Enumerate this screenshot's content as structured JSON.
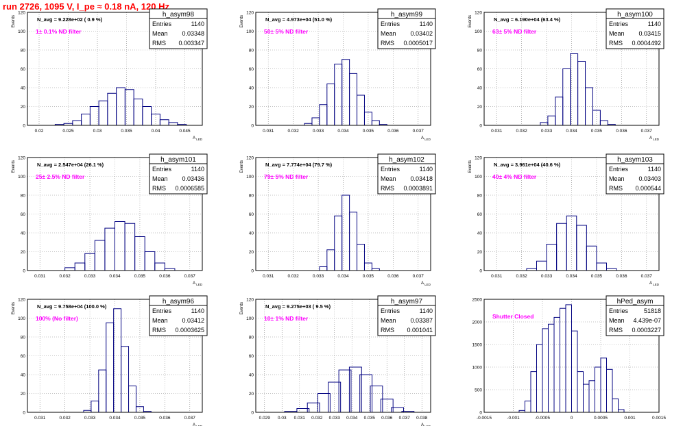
{
  "title": "run 2726,  1095 V, I_pe ≈ 0.18 nA, 120 Hz",
  "colors": {
    "hist": "#000080",
    "title": "#ff0000",
    "annotation": "#ff00ff",
    "frame": "#000000"
  },
  "chart_data": [
    {
      "type": "bar",
      "name": "h_asym98",
      "annotation": "N_avg = 9.228e+02 ( 0.9 %)",
      "label": "1± 0.1% ND filter",
      "ylabel": "Events",
      "xlabel": "A_LED",
      "stats": {
        "entries_label": "Entries",
        "entries": "1140",
        "mean_label": "Mean",
        "mean": "0.03348",
        "rms_label": "RMS",
        "rms": "0.003347"
      },
      "xlim": [
        0.018,
        0.048
      ],
      "ylim": [
        0,
        120
      ],
      "xticks": [
        "0.02",
        "0.025",
        "0.03",
        "0.035",
        "0.04",
        "0.045"
      ],
      "yticks": [
        "0",
        "20",
        "40",
        "60",
        "80",
        "100",
        "120"
      ],
      "x": [
        0.0235,
        0.025,
        0.0265,
        0.028,
        0.0295,
        0.031,
        0.0325,
        0.034,
        0.0355,
        0.037,
        0.0385,
        0.04,
        0.0415,
        0.043,
        0.0445,
        0.046
      ],
      "values": [
        1,
        2,
        5,
        12,
        20,
        26,
        34,
        40,
        38,
        28,
        20,
        12,
        6,
        3,
        1,
        0
      ]
    },
    {
      "type": "bar",
      "name": "h_asym99",
      "annotation": "N_avg = 4.973e+04 (51.0 %)",
      "label": "50± 5% ND filter",
      "ylabel": "Events",
      "xlabel": "A_LED",
      "stats": {
        "entries_label": "Entries",
        "entries": "1140",
        "mean_label": "Mean",
        "mean": "0.03402",
        "rms_label": "RMS",
        "rms": "0.0005017"
      },
      "xlim": [
        0.0305,
        0.0375
      ],
      "ylim": [
        0,
        120
      ],
      "xticks": [
        "0.031",
        "0.032",
        "0.033",
        "0.034",
        "0.035",
        "0.036",
        "0.037"
      ],
      "yticks": [
        "0",
        "20",
        "40",
        "60",
        "80",
        "100",
        "120"
      ],
      "x": [
        0.0326,
        0.0329,
        0.0332,
        0.0335,
        0.0338,
        0.0341,
        0.0344,
        0.0347,
        0.035,
        0.0353,
        0.0356
      ],
      "values": [
        2,
        8,
        22,
        44,
        65,
        70,
        55,
        32,
        14,
        5,
        1
      ]
    },
    {
      "type": "bar",
      "name": "h_asym100",
      "annotation": "N_avg = 6.190e+04 (63.4 %)",
      "label": "63± 5% ND filter",
      "ylabel": "Events",
      "xlabel": "A_LED",
      "stats": {
        "entries_label": "Entries",
        "entries": "1140",
        "mean_label": "Mean",
        "mean": "0.03415",
        "rms_label": "RMS",
        "rms": "0.0004492"
      },
      "xlim": [
        0.0305,
        0.0375
      ],
      "ylim": [
        0,
        120
      ],
      "xticks": [
        "0.031",
        "0.032",
        "0.033",
        "0.034",
        "0.035",
        "0.036",
        "0.037"
      ],
      "yticks": [
        "0",
        "20",
        "40",
        "60",
        "80",
        "100",
        "120"
      ],
      "x": [
        0.0329,
        0.0332,
        0.0335,
        0.0338,
        0.0341,
        0.0344,
        0.0347,
        0.035,
        0.0353,
        0.0356
      ],
      "values": [
        3,
        10,
        30,
        60,
        76,
        68,
        40,
        16,
        5,
        1
      ]
    },
    {
      "type": "bar",
      "name": "h_asym101",
      "annotation": "N_avg = 2.547e+04 (26.1 %)",
      "label": "25± 2.5% ND filter",
      "ylabel": "Events",
      "xlabel": "A_LED",
      "stats": {
        "entries_label": "Entries",
        "entries": "1140",
        "mean_label": "Mean",
        "mean": "0.03436",
        "rms_label": "RMS",
        "rms": "0.0006585"
      },
      "xlim": [
        0.0305,
        0.0375
      ],
      "ylim": [
        0,
        120
      ],
      "xticks": [
        "0.031",
        "0.032",
        "0.033",
        "0.034",
        "0.035",
        "0.036",
        "0.037"
      ],
      "yticks": [
        "0",
        "20",
        "40",
        "60",
        "80",
        "100",
        "120"
      ],
      "x": [
        0.0322,
        0.0326,
        0.033,
        0.0334,
        0.0338,
        0.0342,
        0.0346,
        0.035,
        0.0354,
        0.0358,
        0.0362
      ],
      "values": [
        3,
        8,
        18,
        32,
        45,
        52,
        50,
        36,
        20,
        8,
        2
      ]
    },
    {
      "type": "bar",
      "name": "h_asym102",
      "annotation": "N_avg = 7.774e+04 (79.7 %)",
      "label": "79± 5% ND filter",
      "ylabel": "Events",
      "xlabel": "A_LED",
      "stats": {
        "entries_label": "Entries",
        "entries": "1140",
        "mean_label": "Mean",
        "mean": "0.03418",
        "rms_label": "RMS",
        "rms": "0.0003891"
      },
      "xlim": [
        0.0305,
        0.0375
      ],
      "ylim": [
        0,
        120
      ],
      "xticks": [
        "0.031",
        "0.032",
        "0.033",
        "0.034",
        "0.035",
        "0.036",
        "0.037"
      ],
      "yticks": [
        "0",
        "20",
        "40",
        "60",
        "80",
        "100",
        "120"
      ],
      "x": [
        0.0332,
        0.0335,
        0.0338,
        0.0341,
        0.0344,
        0.0347,
        0.035,
        0.0353
      ],
      "values": [
        4,
        22,
        58,
        80,
        62,
        28,
        8,
        2
      ]
    },
    {
      "type": "bar",
      "name": "h_asym103",
      "annotation": "N_avg = 3.961e+04 (40.6 %)",
      "label": "40± 4% ND filter",
      "ylabel": "Events",
      "xlabel": "A_LED",
      "stats": {
        "entries_label": "Entries",
        "entries": "1140",
        "mean_label": "Mean",
        "mean": "0.03403",
        "rms_label": "RMS",
        "rms": "0.000544"
      },
      "xlim": [
        0.0305,
        0.0375
      ],
      "ylim": [
        0,
        120
      ],
      "xticks": [
        "0.031",
        "0.032",
        "0.033",
        "0.034",
        "0.035",
        "0.036",
        "0.037"
      ],
      "yticks": [
        "0",
        "20",
        "40",
        "60",
        "80",
        "100",
        "120"
      ],
      "x": [
        0.0324,
        0.0328,
        0.0332,
        0.0336,
        0.034,
        0.0344,
        0.0348,
        0.0352,
        0.0356
      ],
      "values": [
        2,
        10,
        28,
        50,
        58,
        48,
        26,
        8,
        2
      ]
    },
    {
      "type": "bar",
      "name": "h_asym96",
      "annotation": "N_avg = 9.758e+04 (100.0 %)",
      "label": "100% (No filter)",
      "ylabel": "Events",
      "xlabel": "A_LED",
      "stats": {
        "entries_label": "Entries",
        "entries": "1140",
        "mean_label": "Mean",
        "mean": "0.03412",
        "rms_label": "RMS",
        "rms": "0.0003625"
      },
      "xlim": [
        0.0305,
        0.0375
      ],
      "ylim": [
        0,
        120
      ],
      "xticks": [
        "0.031",
        "0.032",
        "0.033",
        "0.034",
        "0.035",
        "0.036",
        "0.037"
      ],
      "yticks": [
        "0",
        "20",
        "40",
        "60",
        "80",
        "100",
        "120"
      ],
      "x": [
        0.0329,
        0.0332,
        0.0335,
        0.0338,
        0.0341,
        0.0344,
        0.0347,
        0.035,
        0.0353
      ],
      "values": [
        2,
        12,
        45,
        95,
        110,
        70,
        28,
        6,
        1
      ]
    },
    {
      "type": "bar",
      "name": "h_asym97",
      "annotation": "N_avg = 9.275e+03 ( 9.5 %)",
      "label": "10± 1% ND filter",
      "ylabel": "Events",
      "xlabel": "A_LED",
      "stats": {
        "entries_label": "Entries",
        "entries": "1140",
        "mean_label": "Mean",
        "mean": "0.03387",
        "rms_label": "RMS",
        "rms": "0.001041"
      },
      "xlim": [
        0.0285,
        0.0385
      ],
      "ylim": [
        0,
        120
      ],
      "xticks": [
        "0.029",
        "0.03",
        "0.031",
        "0.032",
        "0.033",
        "0.034",
        "0.035",
        "0.036",
        "0.037",
        "0.038"
      ],
      "yticks": [
        "0",
        "20",
        "40",
        "60",
        "80",
        "100",
        "120"
      ],
      "x": [
        0.0305,
        0.0312,
        0.0318,
        0.0324,
        0.033,
        0.0336,
        0.0342,
        0.0348,
        0.0354,
        0.036,
        0.0366,
        0.0372
      ],
      "values": [
        1,
        4,
        10,
        20,
        32,
        45,
        48,
        40,
        28,
        14,
        5,
        1
      ]
    },
    {
      "type": "bar",
      "name": "hPed_asym",
      "annotation": "",
      "label": "Shutter Closed",
      "ylabel": "",
      "xlabel": "",
      "stats": {
        "entries_label": "Entries",
        "entries": "51818",
        "mean_label": "Mean",
        "mean": "4.439e-07",
        "rms_label": "RMS",
        "rms": "0.0003227"
      },
      "xlim": [
        -0.0015,
        0.0015
      ],
      "ylim": [
        0,
        2500
      ],
      "xticks": [
        "-0.0015",
        "-0.001",
        "-0.0005",
        "0",
        "0.0005",
        "0.001",
        "0.0015"
      ],
      "yticks": [
        "0",
        "500",
        "1000",
        "1500",
        "2000",
        "2500"
      ],
      "x": [
        -0.00085,
        -0.00075,
        -0.00065,
        -0.00055,
        -0.00045,
        -0.00035,
        -0.00025,
        -0.00015,
        -5e-05,
        5e-05,
        0.00015,
        0.00025,
        0.00035,
        0.00045,
        0.00055,
        0.00065,
        0.00075,
        0.00085
      ],
      "values": [
        40,
        250,
        900,
        1500,
        1850,
        1950,
        2100,
        2300,
        2380,
        1800,
        900,
        620,
        700,
        1000,
        1200,
        950,
        300,
        60
      ]
    }
  ]
}
